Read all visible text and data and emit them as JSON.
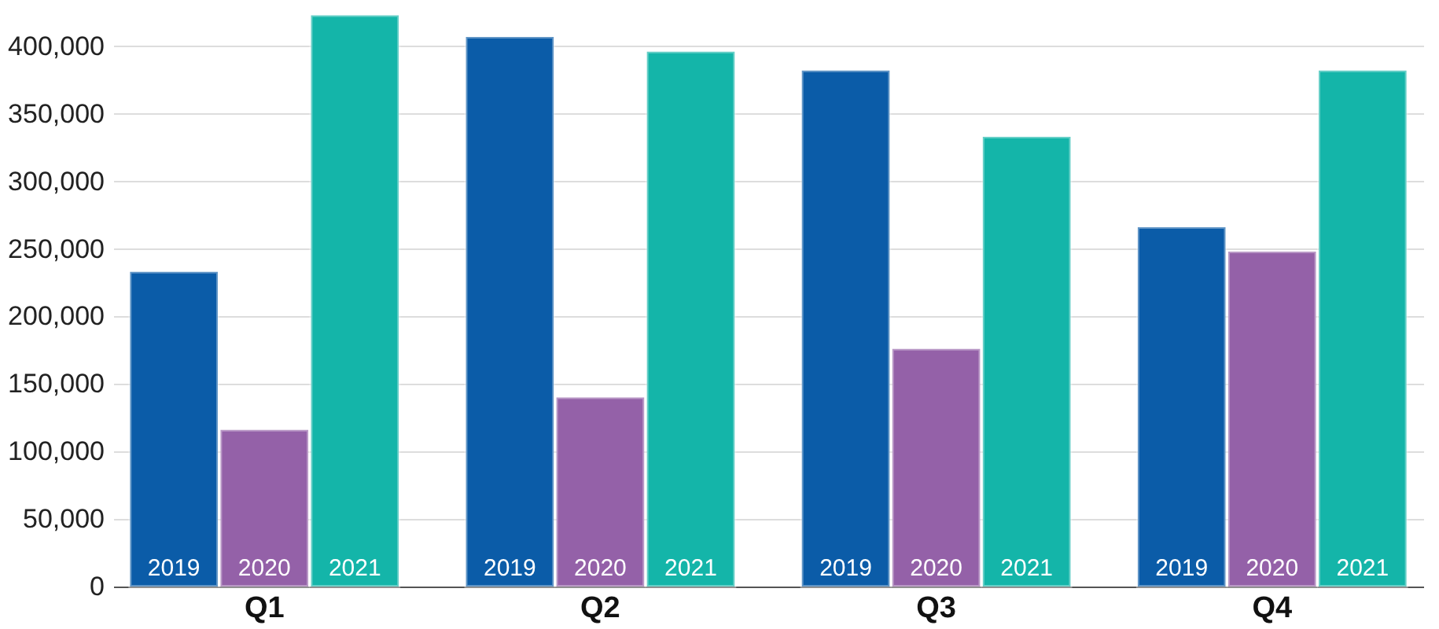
{
  "chart_data": {
    "type": "bar",
    "categories": [
      "Q1",
      "Q2",
      "Q3",
      "Q4"
    ],
    "series": [
      {
        "name": "2019",
        "color": "#0b5ca8",
        "values": [
          233000,
          407000,
          382000,
          266000
        ]
      },
      {
        "name": "2020",
        "color": "#9461a8",
        "values": [
          116000,
          140000,
          176000,
          248000
        ]
      },
      {
        "name": "2021",
        "color": "#14b5a9",
        "values": [
          423000,
          396000,
          333000,
          382000
        ]
      }
    ],
    "ylim": [
      0,
      425000
    ],
    "yticks": [
      {
        "value": 0,
        "label": "0"
      },
      {
        "value": 50000,
        "label": "50,000"
      },
      {
        "value": 100000,
        "label": "100,000"
      },
      {
        "value": 150000,
        "label": "150,000"
      },
      {
        "value": 200000,
        "label": "200,000"
      },
      {
        "value": 250000,
        "label": "250,000"
      },
      {
        "value": 300000,
        "label": "300,000"
      },
      {
        "value": 350000,
        "label": "350,000"
      },
      {
        "value": 400000,
        "label": "400,000"
      }
    ],
    "grid": "y",
    "legend": false
  }
}
